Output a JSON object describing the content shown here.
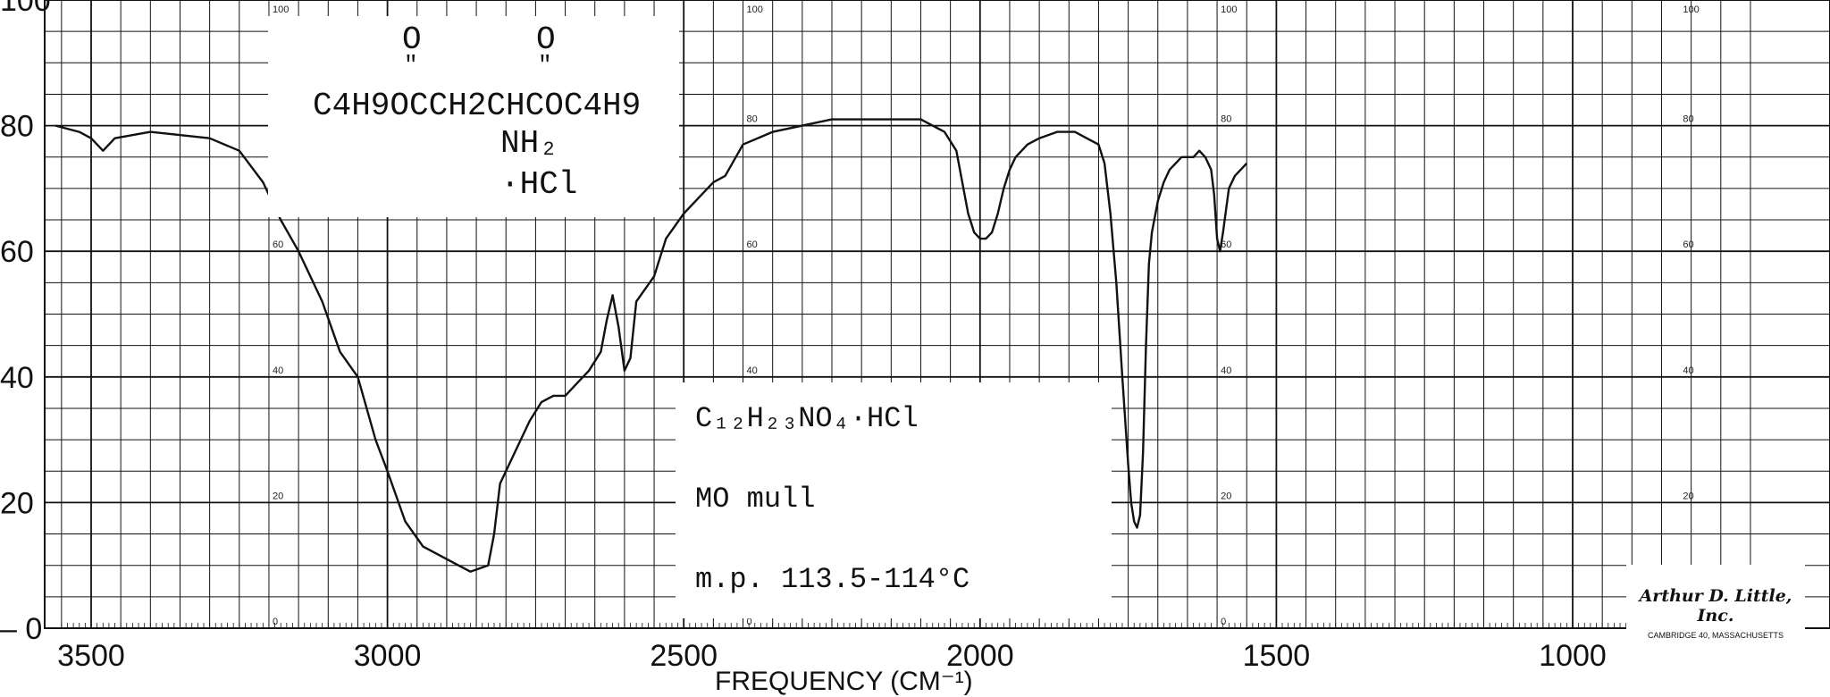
{
  "chart_data": {
    "type": "line",
    "title": "",
    "xlabel": "FREQUENCY (CM⁻¹)",
    "ylabel": "",
    "x_reversed": true,
    "xlim": [
      3560,
      1550
    ],
    "ylim": [
      0,
      100
    ],
    "grid": true,
    "x_ticks": [
      3500,
      3000,
      2500,
      2000,
      1500,
      1000
    ],
    "x_tick_labels": [
      "3500",
      "3000",
      "2500",
      "2000",
      "1500",
      "1000"
    ],
    "y_ticks": [
      0,
      20,
      40,
      60,
      80,
      100
    ],
    "y_tick_labels": [
      "– 0",
      "20",
      "40",
      "60",
      "80",
      "100"
    ],
    "inner_scale_labels": [
      "100",
      "80",
      "60",
      "40",
      "20",
      "0"
    ],
    "series": [
      {
        "x": [
          3560,
          3520,
          3500,
          3480,
          3460,
          3400,
          3300,
          3250,
          3210,
          3180,
          3150,
          3110,
          3080,
          3050,
          3020,
          3000,
          2970,
          2940,
          2900,
          2860,
          2830,
          2820,
          2810,
          2780,
          2760,
          2740,
          2720,
          2700,
          2680,
          2660,
          2640,
          2630,
          2620,
          2610,
          2600,
          2590,
          2580,
          2550,
          2530,
          2500,
          2470,
          2450,
          2430,
          2400,
          2350,
          2300,
          2250,
          2200,
          2150,
          2100,
          2080,
          2060,
          2040,
          2030,
          2020,
          2010,
          2000,
          1990,
          1980,
          1970,
          1960,
          1950,
          1940,
          1920,
          1900,
          1870,
          1840,
          1820,
          1800,
          1790,
          1780,
          1770,
          1760,
          1750,
          1745,
          1740,
          1735,
          1730,
          1725,
          1720,
          1715,
          1710,
          1700,
          1690,
          1680,
          1670,
          1660,
          1650,
          1640,
          1630,
          1620,
          1610,
          1605,
          1600,
          1595,
          1590,
          1580,
          1570,
          1560,
          1550
        ],
        "values": [
          80,
          79,
          78,
          76,
          78,
          79,
          78,
          76,
          71,
          65,
          60,
          52,
          44,
          40,
          30,
          25,
          17,
          13,
          11,
          9,
          10,
          15,
          23,
          29,
          33,
          36,
          37,
          37,
          39,
          41,
          44,
          49,
          53,
          48,
          41,
          43,
          52,
          56,
          62,
          66,
          69,
          71,
          72,
          77,
          79,
          80,
          81,
          81,
          81,
          81,
          80,
          79,
          76,
          71,
          66,
          63,
          62,
          62,
          63,
          66,
          70,
          73,
          75,
          77,
          78,
          79,
          79,
          78,
          77,
          74,
          66,
          55,
          40,
          26,
          20,
          17,
          16,
          18,
          28,
          45,
          58,
          63,
          68,
          71,
          73,
          74,
          75,
          75,
          75,
          76,
          75,
          73,
          69,
          62,
          60,
          63,
          70,
          72,
          73,
          74
        ]
      }
    ]
  },
  "structure": {
    "o_left": "O",
    "o_right": "O",
    "carbonyl_marks": "\"",
    "formula_line": "C₄H₉OĊCCH₂CHCOC₄H₉",
    "formula_main": "C4H9OCCH2CHCOC4H9",
    "nh2": "NH₂",
    "hcl": "·HCl"
  },
  "info": {
    "formula": "C₁₂H₂₃NO₄·HCl",
    "medium": "MO mull",
    "melting_point": "m.p. 113.5-114°C"
  },
  "logo": {
    "name": "Arthur D. Little, Inc.",
    "address": "CAMBRIDGE 40, MASSACHUSETTS"
  },
  "axis_title": "FREQUENCY (CM⁻¹)"
}
